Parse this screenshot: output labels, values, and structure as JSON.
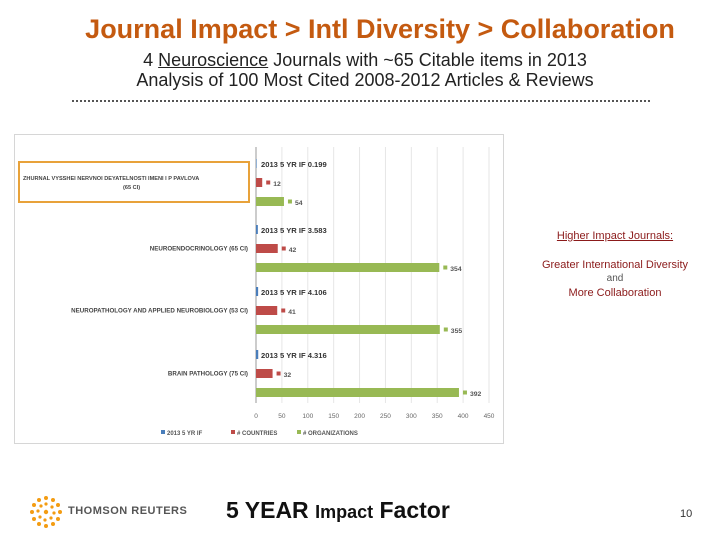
{
  "header": {
    "title": "Journal Impact > Intl Diversity > Collaboration",
    "subtitle_prefix": "4",
    "subtitle_underlined": "Neuroscience",
    "subtitle_suffix": "Journals with ~65 Citable items in 2013",
    "subtitle2": "Analysis of 100 Most Cited 2008-2012 Articles & Reviews"
  },
  "chart_data": {
    "type": "bar",
    "orientation": "horizontal",
    "categories": [
      "ZHURNAL VYSSHEI NERVNOI DEYATELNOSTI IMENI I P PAVLOVA (65 CI)",
      "NEUROENDOCRINOLOGY (65 CI)",
      "NEUROPATHOLOGY AND APPLIED NEUROBIOLOGY (53 CI)",
      "BRAIN PATHOLOGY (75 CI)"
    ],
    "category_lines": [
      [
        "ZHURNAL VYSSHEI NERVNOI DEYATELNOSTI IMENI I P PAVLOVA",
        "(65 CI)"
      ],
      [
        "NEUROENDOCRINOLOGY (65 CI)"
      ],
      [
        "NEUROPATHOLOGY AND APPLIED NEUROBIOLOGY (53 CI)"
      ],
      [
        "BRAIN PATHOLOGY (75 CI)"
      ]
    ],
    "series": [
      {
        "name": "2013 5 YR IF",
        "values": [
          0.199,
          3.583,
          4.106,
          4.316
        ],
        "labels": [
          "2013 5 YR IF 0.199",
          "2013 5 YR IF 3.583",
          "2013 5 YR IF 4.106",
          "2013 5 YR IF 4.316"
        ],
        "color": "#4a7ebb"
      },
      {
        "name": "# COUNTRIES",
        "values": [
          12,
          42,
          41,
          32
        ],
        "labels": [
          "12",
          "42",
          "41",
          "32"
        ],
        "color": "#be4b48"
      },
      {
        "name": "# ORGANIZATIONS",
        "values": [
          54,
          354,
          355,
          392
        ],
        "labels": [
          "54",
          "354",
          "355",
          "392"
        ],
        "color": "#98b954"
      }
    ],
    "xlim": [
      0,
      450
    ],
    "xticks": [
      "0",
      "50",
      "100",
      "150",
      "200",
      "250",
      "300",
      "350",
      "400",
      "450"
    ],
    "legend_position": "bottom",
    "highlighted_category": 0
  },
  "notes": {
    "title": "Higher Impact Journals:",
    "line1": "Greater International Diversity",
    "line2": "and",
    "line3": "More Collaboration"
  },
  "footer": {
    "brand": "THOMSON REUTERS",
    "main_big1": "5 YEAR",
    "main_small": "Impact",
    "main_big2": "Factor",
    "page_number": "10"
  },
  "colors": {
    "title": "#c45a10",
    "highlight_box": "#e8a23a",
    "note_text": "#8b1a1a"
  }
}
